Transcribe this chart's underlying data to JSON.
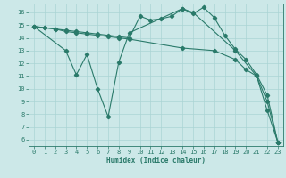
{
  "bg_color": "#cce8e8",
  "grid_color": "#aad4d4",
  "line_color": "#2a7a6a",
  "xlabel": "Humidex (Indice chaleur)",
  "xlim": [
    -0.5,
    23.5
  ],
  "ylim": [
    5.5,
    16.7
  ],
  "yticks": [
    6,
    7,
    8,
    9,
    10,
    11,
    12,
    13,
    14,
    15,
    16
  ],
  "xticks": [
    0,
    1,
    2,
    3,
    4,
    5,
    6,
    7,
    8,
    9,
    10,
    11,
    12,
    13,
    14,
    15,
    16,
    17,
    18,
    19,
    20,
    21,
    22,
    23
  ],
  "series1_x": [
    0,
    1,
    2,
    3,
    4,
    5,
    6,
    7,
    8,
    9,
    10,
    11,
    12,
    13,
    14,
    15,
    16,
    17,
    18,
    19,
    20,
    21,
    22,
    23
  ],
  "series1_y": [
    14.9,
    14.8,
    14.7,
    14.6,
    14.5,
    14.4,
    14.3,
    14.2,
    14.1,
    14.0,
    15.7,
    15.4,
    15.5,
    15.7,
    16.3,
    15.9,
    16.4,
    15.6,
    14.2,
    13.1,
    12.3,
    11.1,
    9.5,
    5.8
  ],
  "series2_x": [
    0,
    1,
    2,
    3,
    4,
    5,
    6,
    7,
    8,
    9,
    14,
    17,
    19,
    20,
    21,
    22,
    23
  ],
  "series2_y": [
    14.9,
    14.8,
    14.7,
    14.5,
    14.4,
    14.3,
    14.2,
    14.1,
    14.0,
    13.9,
    13.2,
    13.0,
    12.3,
    11.5,
    11.0,
    9.0,
    5.8
  ],
  "series3_x": [
    0,
    3,
    4,
    5,
    6,
    7,
    8,
    9,
    14,
    15,
    19,
    21,
    22,
    23
  ],
  "series3_y": [
    14.9,
    13.0,
    11.1,
    12.7,
    10.0,
    7.8,
    12.1,
    14.4,
    16.3,
    16.0,
    13.0,
    11.0,
    8.3,
    5.8
  ]
}
